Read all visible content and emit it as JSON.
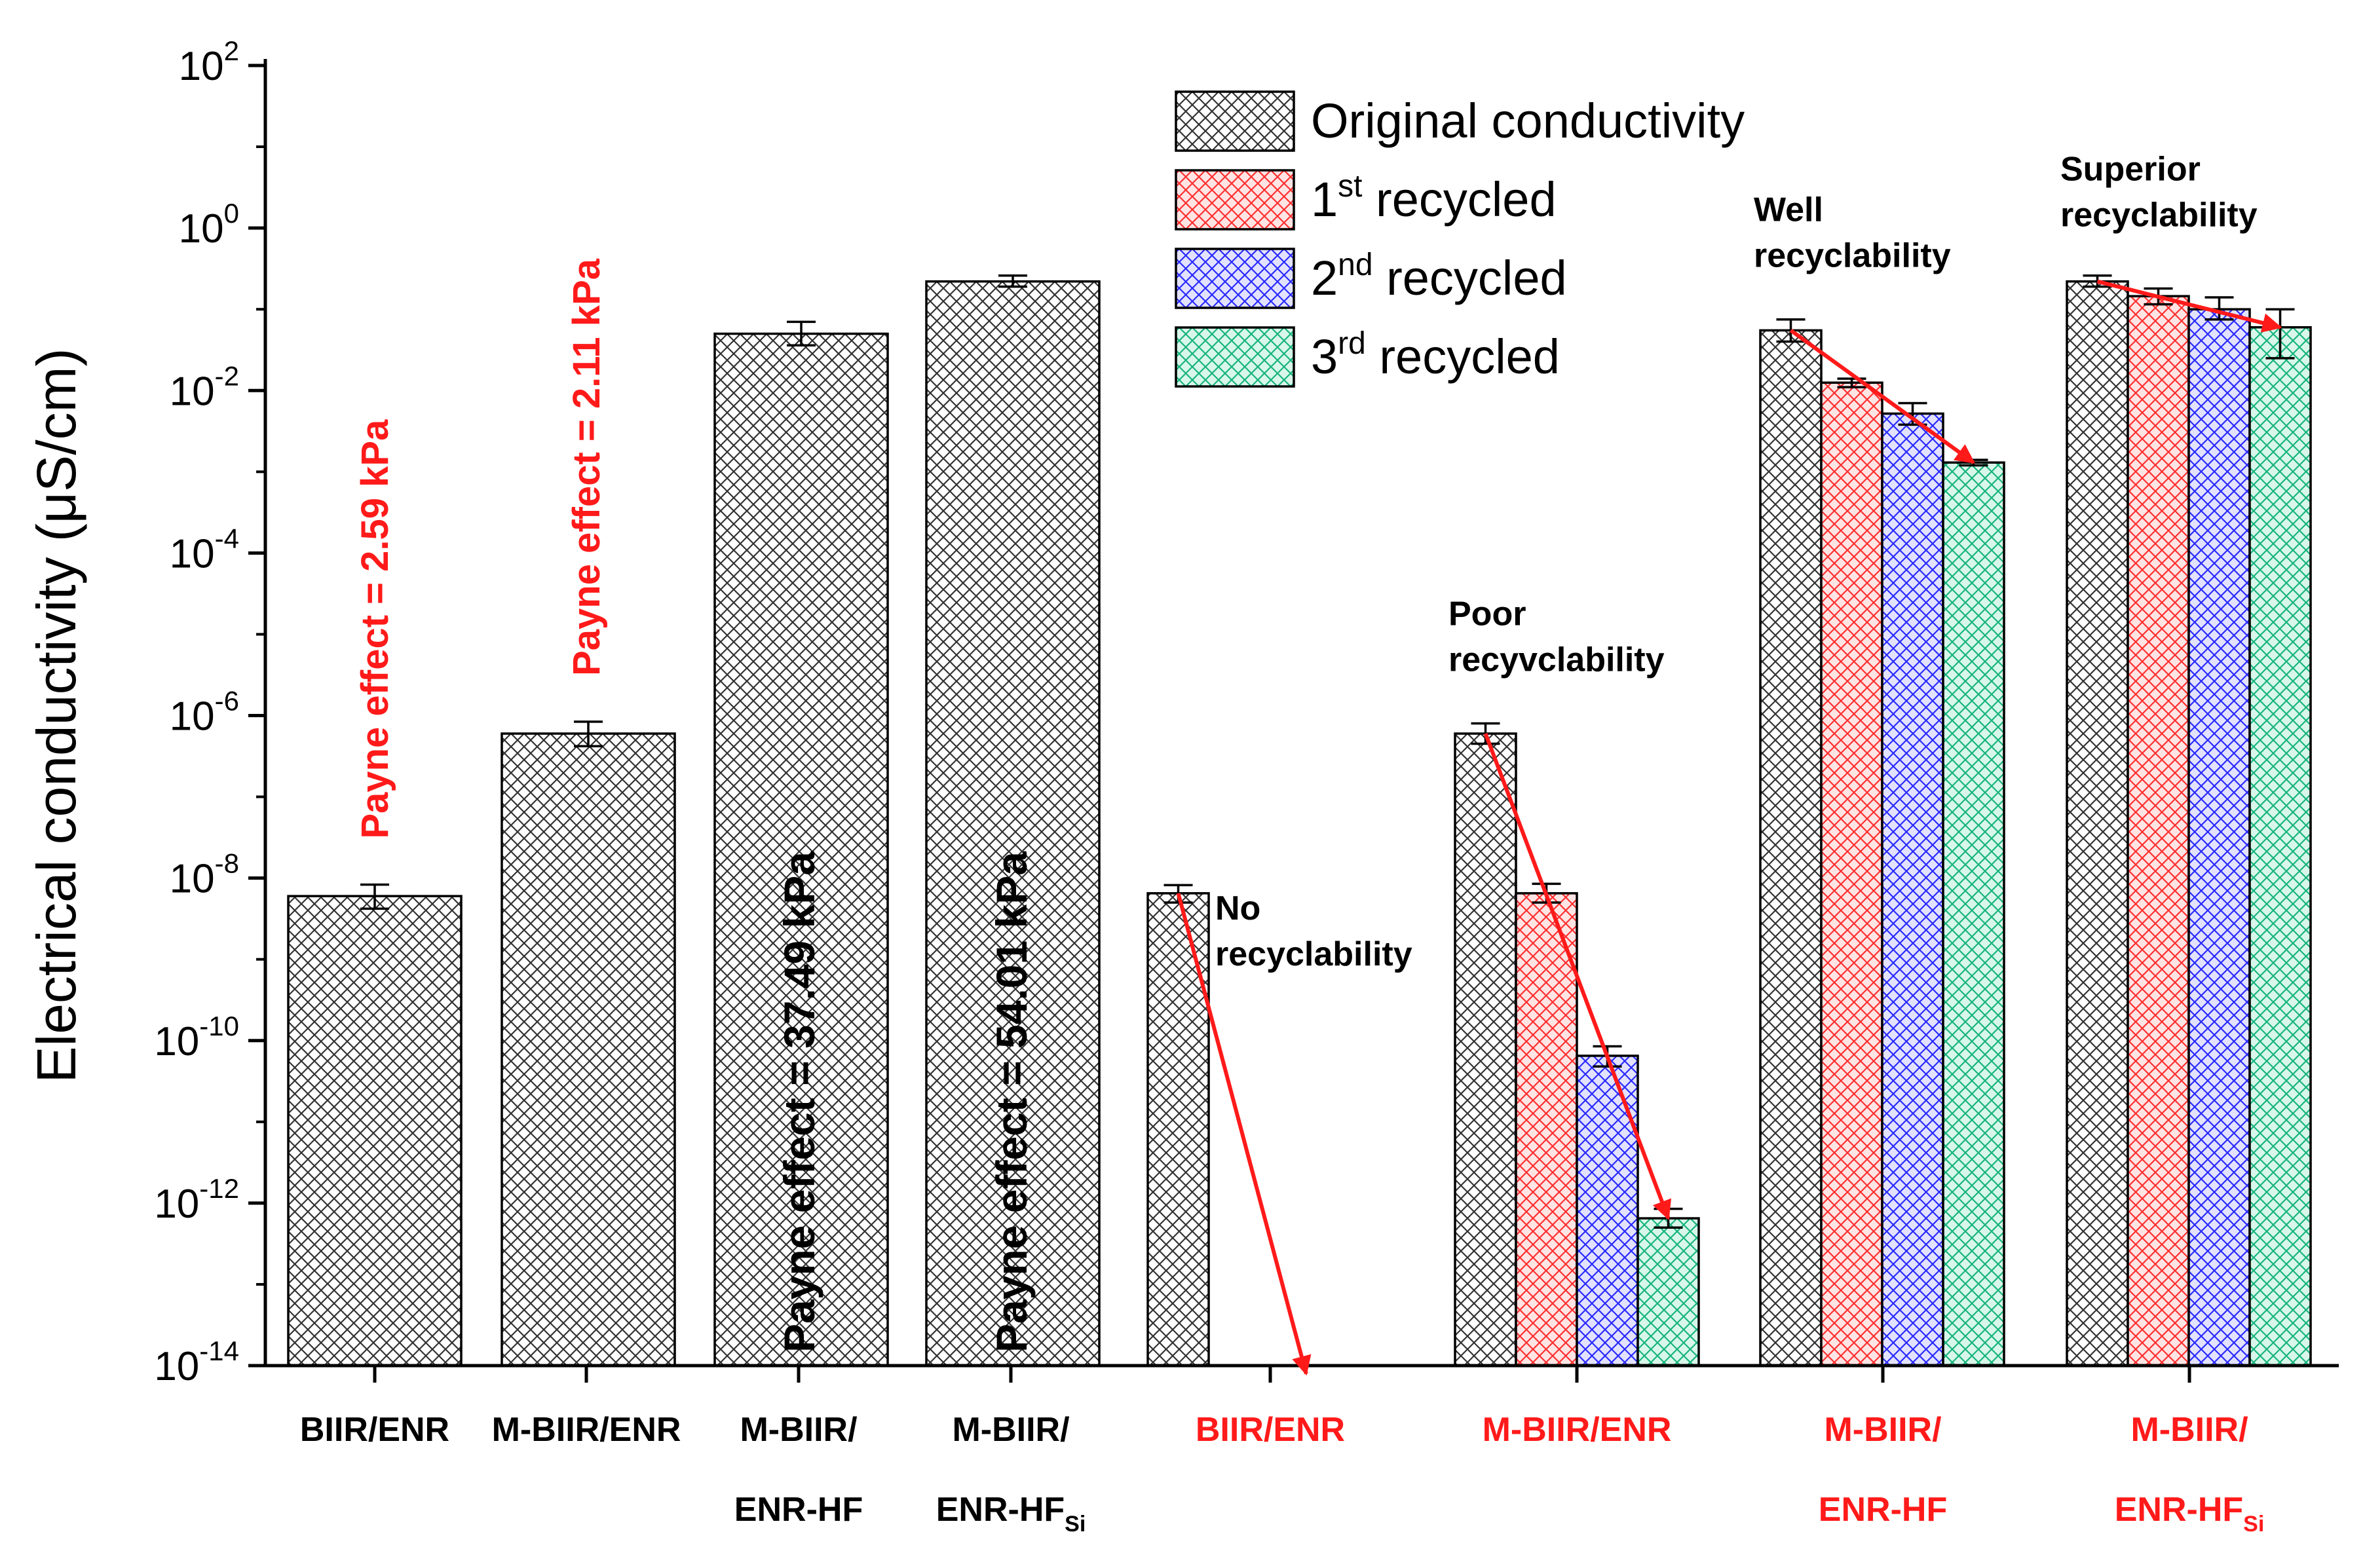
{
  "chart_data": {
    "type": "bar",
    "yscale": "log",
    "ylabel": "Electrical conductivity (μS/cm)",
    "ylim_exponents": [
      -14,
      2
    ],
    "ytick_exponents": [
      2,
      0,
      -2,
      -4,
      -6,
      -8,
      -10,
      -12,
      -14
    ],
    "ytick_base": "10",
    "legend": [
      {
        "name": "Original conductivity",
        "sup": "",
        "prefix": "Original conductivity",
        "suffix": "",
        "color": "#000000",
        "fill": "#ffffff"
      },
      {
        "name": "1st recycled",
        "prefix": "1",
        "sup": "st",
        "suffix": " recycled",
        "color": "#ff2b2b",
        "fill": "#ffd6d6"
      },
      {
        "name": "2nd recycled",
        "prefix": "2",
        "sup": "nd",
        "suffix": " recycled",
        "color": "#2222ff",
        "fill": "#d6d6ff"
      },
      {
        "name": "3rd recycled",
        "prefix": "3",
        "sup": "rd",
        "suffix": " recycled",
        "color": "#1ac28a",
        "fill": "#ccf5e6"
      }
    ],
    "groups": [
      {
        "label_lines": [
          "BIIR/ENR"
        ],
        "sub": "",
        "label_color": "#000000",
        "bars": [
          {
            "series": 0,
            "value": 6e-09,
            "err": [
              4.2e-09,
              8.3e-09
            ]
          }
        ],
        "payne": "Payne effect = 2.59 kPa",
        "payne_style": "red-above"
      },
      {
        "label_lines": [
          "M-BIIR/ENR"
        ],
        "sub": "",
        "label_color": "#000000",
        "bars": [
          {
            "series": 0,
            "value": 6e-07,
            "err": [
              4.2e-07,
              8.4e-07
            ]
          }
        ],
        "payne": "Payne effect = 2.11 kPa",
        "payne_style": "red-above"
      },
      {
        "label_lines": [
          "M-BIIR/",
          "ENR-HF"
        ],
        "sub": "",
        "label_color": "#000000",
        "bars": [
          {
            "series": 0,
            "value": 0.05,
            "err": [
              0.036,
              0.07
            ]
          }
        ],
        "payne": "Payne effect = 37.49 kPa",
        "payne_style": "black-inside"
      },
      {
        "label_lines": [
          "M-BIIR/",
          "ENR-HF"
        ],
        "sub": "Si",
        "label_color": "#000000",
        "bars": [
          {
            "series": 0,
            "value": 0.22,
            "err": [
              0.19,
              0.26
            ]
          }
        ],
        "payne": "Payne effect = 54.01 kPa",
        "payne_style": "black-inside"
      },
      {
        "label_lines": [
          "BIIR/ENR"
        ],
        "sub": "",
        "label_color": "#ff1a1a",
        "bars": [
          {
            "series": 0,
            "value": 6.5e-09,
            "err": [
              5e-09,
              8.2e-09
            ]
          }
        ],
        "annotation": [
          "No",
          "recyclability"
        ],
        "arrow_to_exp": -14.1
      },
      {
        "label_lines": [
          "M-BIIR/ENR"
        ],
        "sub": "",
        "label_color": "#ff1a1a",
        "bars": [
          {
            "series": 0,
            "value": 6e-07,
            "err": [
              4.5e-07,
              8e-07
            ]
          },
          {
            "series": 1,
            "value": 6.5e-09,
            "err": [
              5e-09,
              8.5e-09
            ]
          },
          {
            "series": 2,
            "value": 6.5e-11,
            "err": [
              4.8e-11,
              8.5e-11
            ]
          },
          {
            "series": 3,
            "value": 6.5e-13,
            "err": [
              5e-13,
              8.5e-13
            ]
          }
        ],
        "annotation": [
          "Poor",
          "recyvclability"
        ]
      },
      {
        "label_lines": [
          "M-BIIR/",
          "ENR-HF"
        ],
        "sub": "",
        "label_color": "#ff1a1a",
        "bars": [
          {
            "series": 0,
            "value": 0.055,
            "err": [
              0.04,
              0.075
            ]
          },
          {
            "series": 1,
            "value": 0.0125,
            "err": [
              0.011,
              0.014
            ]
          },
          {
            "series": 2,
            "value": 0.0052,
            "err": [
              0.0038,
              0.007
            ]
          },
          {
            "series": 3,
            "value": 0.0013,
            "err": [
              0.0012,
              0.0014
            ]
          }
        ],
        "annotation": [
          "Well",
          "recyclability"
        ]
      },
      {
        "label_lines": [
          "M-BIIR/",
          "ENR-HF"
        ],
        "sub": "Si",
        "label_color": "#ff1a1a",
        "bars": [
          {
            "series": 0,
            "value": 0.22,
            "err": [
              0.19,
              0.26
            ]
          },
          {
            "series": 1,
            "value": 0.145,
            "err": [
              0.115,
              0.18
            ]
          },
          {
            "series": 2,
            "value": 0.1,
            "err": [
              0.075,
              0.14
            ]
          },
          {
            "series": 3,
            "value": 0.06,
            "err": [
              0.025,
              0.1
            ]
          }
        ],
        "annotation": [
          "Superior",
          "recyclability"
        ]
      }
    ]
  }
}
